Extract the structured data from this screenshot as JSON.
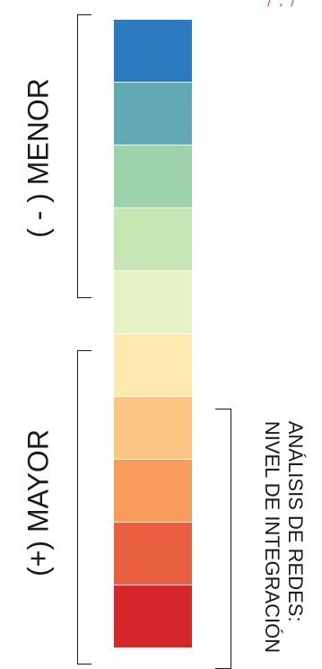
{
  "legend": {
    "swatches": [
      {
        "color": "#2c7bc1"
      },
      {
        "color": "#62a9b4"
      },
      {
        "color": "#9dd3aa"
      },
      {
        "color": "#c6e6b4"
      },
      {
        "color": "#e4f2c5"
      },
      {
        "color": "#fde8ae"
      },
      {
        "color": "#fcc581"
      },
      {
        "color": "#f99c5b"
      },
      {
        "color": "#e8603f"
      },
      {
        "color": "#d7262a"
      }
    ],
    "menor_label": "( - )  MENOR",
    "mayor_label": "(+)  MAYOR",
    "title_line1": "ANÁLISIS DE REDES:",
    "title_line2": "NIVEL DE INTEGRACIÓN"
  },
  "decor": {
    "corner_mark": "/ , /"
  }
}
